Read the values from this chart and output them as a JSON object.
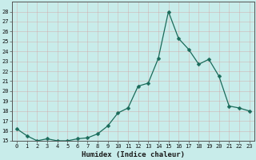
{
  "x": [
    0,
    1,
    2,
    3,
    4,
    5,
    6,
    7,
    8,
    9,
    10,
    11,
    12,
    13,
    14,
    15,
    16,
    17,
    18,
    19,
    20,
    21,
    22,
    23
  ],
  "y": [
    16.2,
    15.5,
    15.0,
    15.2,
    15.0,
    15.0,
    15.2,
    15.3,
    15.7,
    16.5,
    17.8,
    18.3,
    20.5,
    20.8,
    23.3,
    28.0,
    25.3,
    24.2,
    22.7,
    23.2,
    21.5,
    18.5,
    18.3,
    18.0
  ],
  "xlabel": "Humidex (Indice chaleur)",
  "ylim": [
    15,
    29
  ],
  "xlim": [
    -0.5,
    23.5
  ],
  "line_color": "#1a6b5a",
  "bg_color": "#c8ecea",
  "grid_color": "#b0d8d5",
  "yticks": [
    15,
    16,
    17,
    18,
    19,
    20,
    21,
    22,
    23,
    24,
    25,
    26,
    27,
    28
  ],
  "xticks": [
    0,
    1,
    2,
    3,
    4,
    5,
    6,
    7,
    8,
    9,
    10,
    11,
    12,
    13,
    14,
    15,
    16,
    17,
    18,
    19,
    20,
    21,
    22,
    23
  ],
  "xlabel_fontsize": 6.5,
  "tick_fontsize": 5.0
}
